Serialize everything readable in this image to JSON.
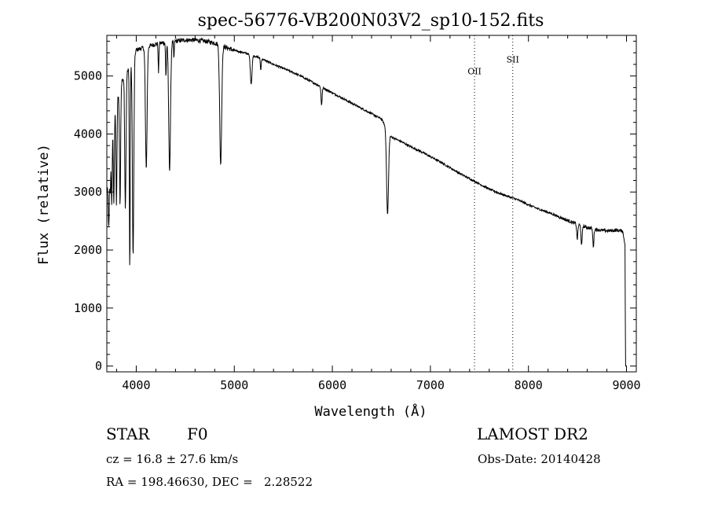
{
  "chart_data": {
    "type": "line",
    "title": "spec-56776-VB200N03V2_sp10-152.fits",
    "xlabel": "Wavelength (Å)",
    "ylabel": "Flux (relative)",
    "xlim": [
      3700,
      9100
    ],
    "ylim": [
      -100,
      5700
    ],
    "x_ticks": [
      4000,
      5000,
      6000,
      7000,
      8000,
      9000
    ],
    "y_ticks": [
      0,
      1000,
      2000,
      3000,
      4000,
      5000
    ],
    "continuum": [
      [
        3700,
        3000
      ],
      [
        3760,
        4200
      ],
      [
        3850,
        4900
      ],
      [
        3950,
        5200
      ],
      [
        4000,
        5450
      ],
      [
        4100,
        5500
      ],
      [
        4200,
        5550
      ],
      [
        4300,
        5580
      ],
      [
        4400,
        5600
      ],
      [
        4500,
        5620
      ],
      [
        4600,
        5620
      ],
      [
        4700,
        5600
      ],
      [
        4800,
        5570
      ],
      [
        4900,
        5500
      ],
      [
        5000,
        5440
      ],
      [
        5100,
        5400
      ],
      [
        5200,
        5350
      ],
      [
        5300,
        5280
      ],
      [
        5400,
        5200
      ],
      [
        5500,
        5130
      ],
      [
        5600,
        5060
      ],
      [
        5700,
        4980
      ],
      [
        5800,
        4890
      ],
      [
        5900,
        4800
      ],
      [
        6000,
        4710
      ],
      [
        6100,
        4620
      ],
      [
        6200,
        4530
      ],
      [
        6300,
        4440
      ],
      [
        6400,
        4350
      ],
      [
        6500,
        4260
      ],
      [
        6600,
        3950
      ],
      [
        6700,
        3870
      ],
      [
        6800,
        3780
      ],
      [
        6900,
        3700
      ],
      [
        7000,
        3610
      ],
      [
        7100,
        3520
      ],
      [
        7200,
        3420
      ],
      [
        7300,
        3320
      ],
      [
        7400,
        3230
      ],
      [
        7500,
        3140
      ],
      [
        7600,
        3050
      ],
      [
        7700,
        2980
      ],
      [
        7800,
        2920
      ],
      [
        7900,
        2860
      ],
      [
        8000,
        2780
      ],
      [
        8100,
        2710
      ],
      [
        8200,
        2650
      ],
      [
        8300,
        2580
      ],
      [
        8400,
        2510
      ],
      [
        8500,
        2440
      ],
      [
        8600,
        2390
      ],
      [
        8700,
        2350
      ],
      [
        8800,
        2330
      ],
      [
        8900,
        2340
      ],
      [
        8960,
        2330
      ],
      [
        8985,
        2100
      ],
      [
        8990,
        0
      ],
      [
        9000,
        0
      ]
    ],
    "absorption_lines": [
      {
        "wavelength": 3720,
        "depth": 1000,
        "width": 8
      },
      {
        "wavelength": 3735,
        "depth": 700,
        "width": 6
      },
      {
        "wavelength": 3750,
        "depth": 1200,
        "width": 7
      },
      {
        "wavelength": 3771,
        "depth": 1500,
        "width": 7
      },
      {
        "wavelength": 3798,
        "depth": 1700,
        "width": 7
      },
      {
        "wavelength": 3835,
        "depth": 2000,
        "width": 8
      },
      {
        "wavelength": 3889,
        "depth": 2300,
        "width": 9
      },
      {
        "wavelength": 3934,
        "depth": 3500,
        "width": 6
      },
      {
        "wavelength": 3968,
        "depth": 3400,
        "width": 10
      },
      {
        "wavelength": 4102,
        "depth": 2100,
        "width": 12
      },
      {
        "wavelength": 4227,
        "depth": 500,
        "width": 5
      },
      {
        "wavelength": 4303,
        "depth": 600,
        "width": 6
      },
      {
        "wavelength": 4340,
        "depth": 2200,
        "width": 13
      },
      {
        "wavelength": 4384,
        "depth": 300,
        "width": 5
      },
      {
        "wavelength": 4861,
        "depth": 2050,
        "width": 14
      },
      {
        "wavelength": 5172,
        "depth": 500,
        "width": 12
      },
      {
        "wavelength": 5270,
        "depth": 200,
        "width": 6
      },
      {
        "wavelength": 5890,
        "depth": 300,
        "width": 8
      },
      {
        "wavelength": 6563,
        "depth": 1450,
        "width": 14
      },
      {
        "wavelength": 8498,
        "depth": 250,
        "width": 8
      },
      {
        "wavelength": 8542,
        "depth": 350,
        "width": 8
      },
      {
        "wavelength": 8662,
        "depth": 300,
        "width": 8
      }
    ],
    "noise_amplitude": 35,
    "markers": [
      {
        "label": "OII",
        "wavelength": 7450,
        "label_flux": 5030
      },
      {
        "label": "SII",
        "wavelength": 7840,
        "label_flux": 5230
      }
    ]
  },
  "info": {
    "object_class": "STAR",
    "subclass": "F0",
    "survey": "LAMOST DR2",
    "redshift": "cz = 16.8 ± 27.6 km/s",
    "obs_date": "Obs-Date: 20140428",
    "coords": "RA = 198.46630, DEC =   2.28522"
  }
}
